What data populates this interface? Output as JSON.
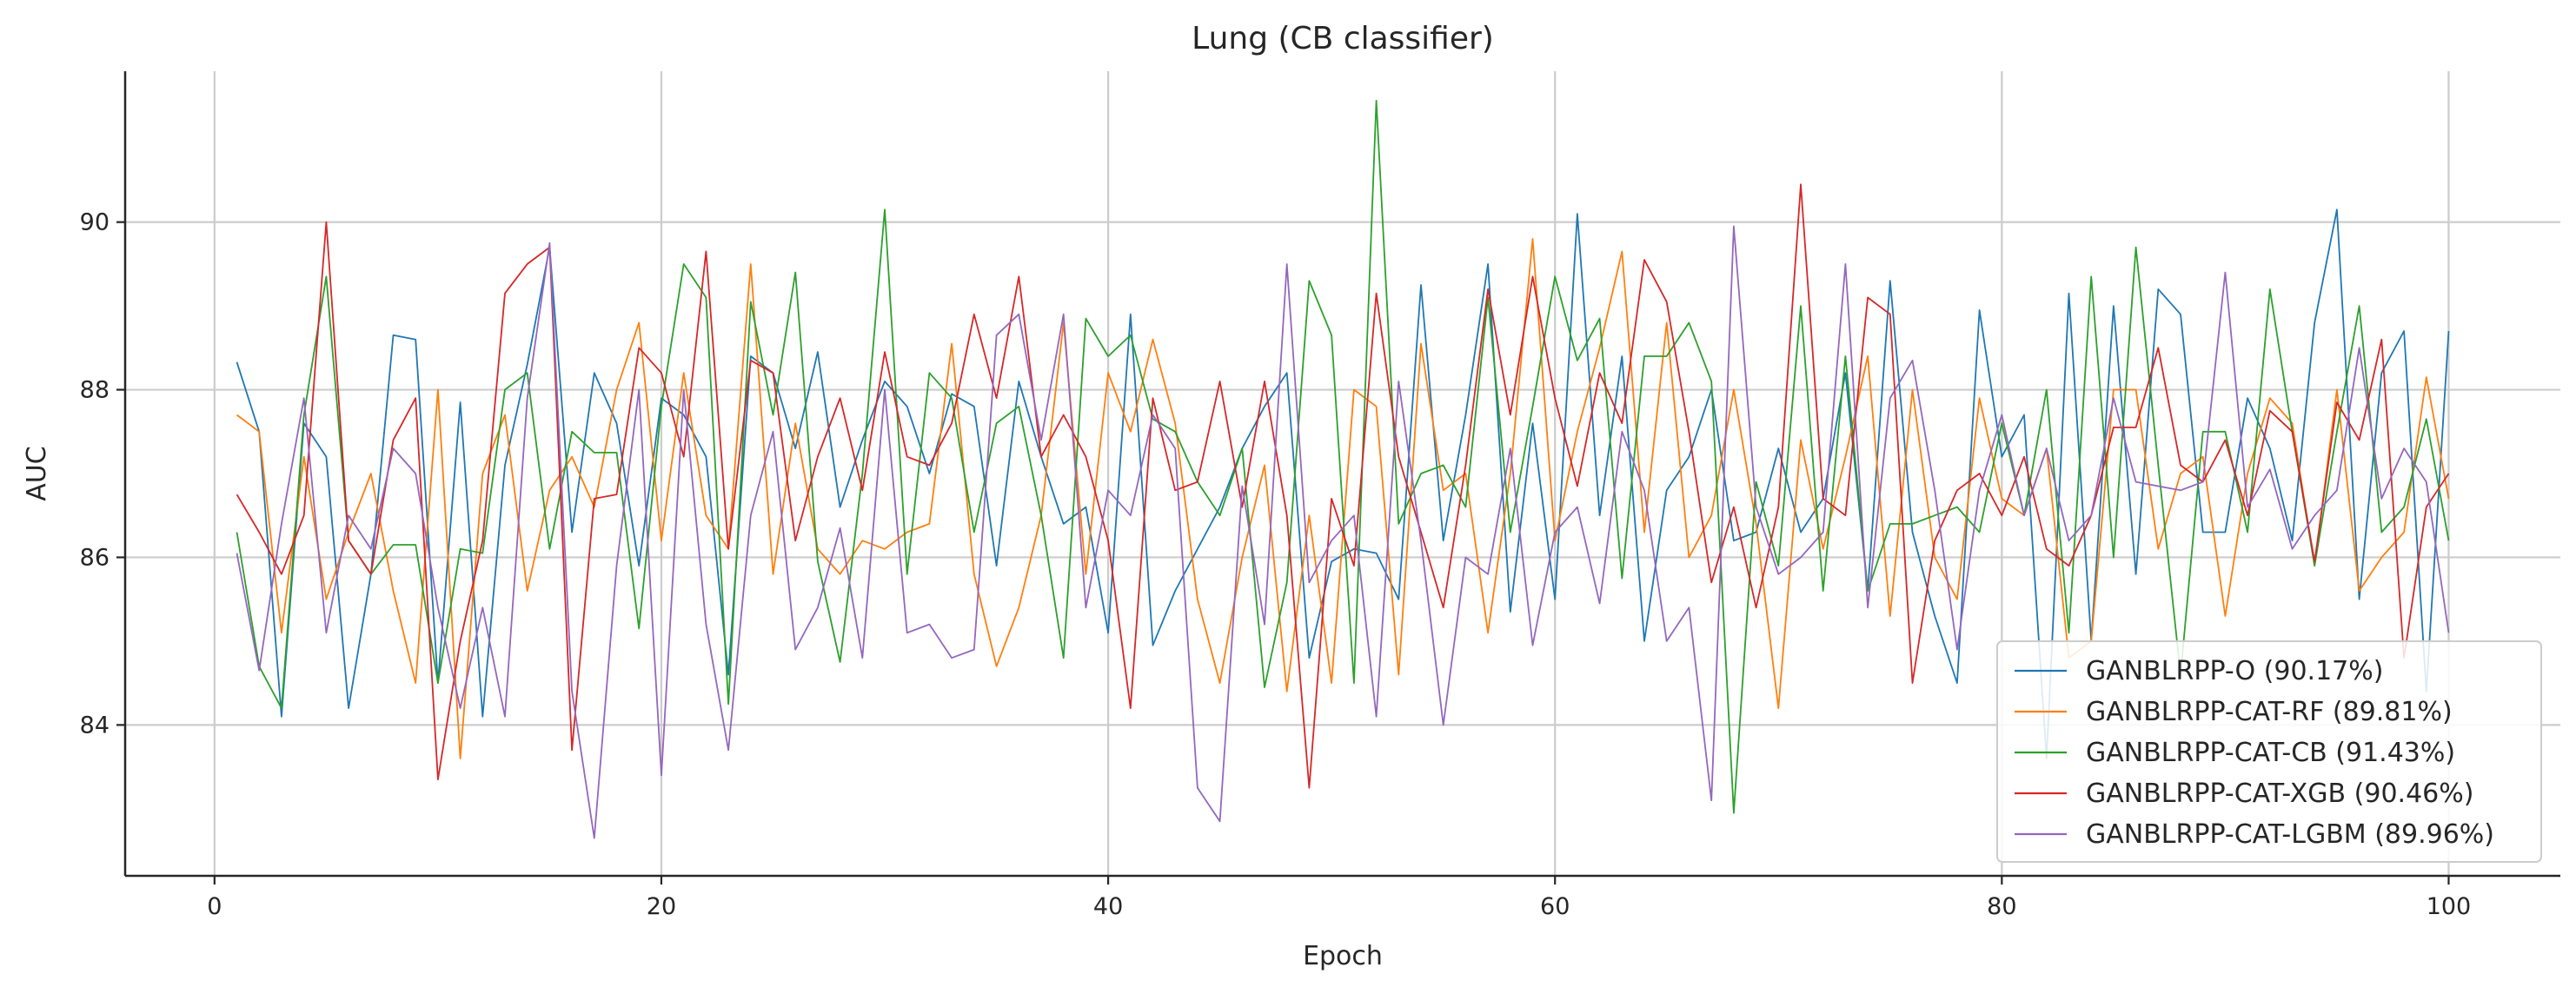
{
  "chart_data": {
    "type": "line",
    "title": "Lung (CB classifier)",
    "xlabel": "Epoch",
    "ylabel": "AUC",
    "xlim": [
      -4,
      105
    ],
    "ylim": [
      82.2,
      91.8
    ],
    "xticks": [
      0,
      20,
      40,
      60,
      80,
      100
    ],
    "yticks": [
      84,
      86,
      88,
      90
    ],
    "grid": true,
    "legend_position": "bottom-right",
    "x": [
      1,
      2,
      3,
      4,
      5,
      6,
      7,
      8,
      9,
      10,
      11,
      12,
      13,
      14,
      15,
      16,
      17,
      18,
      19,
      20,
      21,
      22,
      23,
      24,
      25,
      26,
      27,
      28,
      29,
      30,
      31,
      32,
      33,
      34,
      35,
      36,
      37,
      38,
      39,
      40,
      41,
      42,
      43,
      44,
      45,
      46,
      47,
      48,
      49,
      50,
      51,
      52,
      53,
      54,
      55,
      56,
      57,
      58,
      59,
      60,
      61,
      62,
      63,
      64,
      65,
      66,
      67,
      68,
      69,
      70,
      71,
      72,
      73,
      74,
      75,
      76,
      77,
      78,
      79,
      80,
      81,
      82,
      83,
      84,
      85,
      86,
      87,
      88,
      89,
      90,
      91,
      92,
      93,
      94,
      95,
      96,
      97,
      98,
      99,
      100
    ],
    "series": [
      {
        "name": "GANBLRPP-O (90.17%)",
        "color": "#1f77b4",
        "values": [
          88.33,
          87.5,
          84.1,
          87.6,
          87.2,
          84.2,
          85.8,
          88.65,
          88.6,
          84.5,
          87.85,
          84.1,
          87.1,
          88.3,
          89.7,
          86.3,
          88.2,
          87.6,
          85.9,
          87.9,
          87.7,
          87.2,
          84.6,
          88.4,
          88.2,
          87.3,
          88.45,
          86.6,
          87.4,
          88.1,
          87.8,
          87.0,
          87.95,
          87.8,
          85.9,
          88.1,
          87.2,
          86.4,
          86.6,
          85.1,
          88.9,
          84.95,
          85.6,
          86.1,
          86.6,
          87.3,
          87.8,
          88.2,
          84.8,
          85.95,
          86.1,
          86.05,
          85.5,
          89.25,
          86.2,
          87.7,
          89.5,
          85.35,
          87.6,
          85.5,
          90.1,
          86.5,
          88.4,
          85.0,
          86.8,
          87.2,
          88.0,
          86.2,
          86.3,
          87.3,
          86.3,
          86.7,
          88.2,
          85.6,
          89.3,
          86.3,
          85.3,
          84.5,
          88.95,
          87.2,
          87.7,
          83.6,
          89.15,
          85.0,
          89.0,
          85.8,
          89.2,
          88.9,
          86.3,
          86.3,
          87.9,
          87.3,
          86.2,
          88.8,
          90.15,
          85.5,
          88.2,
          88.7,
          84.4,
          88.7
        ]
      },
      {
        "name": "GANBLRPP-CAT-RF (89.81%)",
        "color": "#ff7f0e",
        "values": [
          87.7,
          87.5,
          85.1,
          87.2,
          85.5,
          86.3,
          87.0,
          85.6,
          84.5,
          88.0,
          83.6,
          87.0,
          87.7,
          85.6,
          86.8,
          87.2,
          86.6,
          88.0,
          88.8,
          86.2,
          88.2,
          86.5,
          86.1,
          89.5,
          85.8,
          87.6,
          86.1,
          85.8,
          86.2,
          86.1,
          86.3,
          86.4,
          88.55,
          85.8,
          84.7,
          85.4,
          86.5,
          88.8,
          85.8,
          88.2,
          87.5,
          88.6,
          87.6,
          85.5,
          84.5,
          86.0,
          87.1,
          84.4,
          86.5,
          84.5,
          88.0,
          87.8,
          84.6,
          88.55,
          86.8,
          87.0,
          85.1,
          87.0,
          89.8,
          86.2,
          87.5,
          88.5,
          89.65,
          86.3,
          88.8,
          86.0,
          86.5,
          88.0,
          86.4,
          84.2,
          87.4,
          86.1,
          87.2,
          88.4,
          85.3,
          88.0,
          86.0,
          85.5,
          87.9,
          86.7,
          86.5,
          87.3,
          84.8,
          85.0,
          88.0,
          88.0,
          86.1,
          87.0,
          87.2,
          85.3,
          87.0,
          87.9,
          87.6,
          85.9,
          88.0,
          85.6,
          86.0,
          86.3,
          88.15,
          86.7
        ]
      },
      {
        "name": "GANBLRPP-CAT-CB (91.43%)",
        "color": "#2ca02c",
        "values": [
          86.3,
          84.7,
          84.2,
          87.7,
          89.35,
          86.2,
          85.8,
          86.15,
          86.15,
          84.5,
          86.1,
          86.05,
          88.0,
          88.2,
          86.1,
          87.5,
          87.25,
          87.25,
          85.15,
          87.8,
          89.5,
          89.1,
          84.25,
          89.05,
          87.7,
          89.4,
          85.95,
          84.75,
          87.0,
          90.15,
          85.8,
          88.2,
          87.9,
          86.3,
          87.6,
          87.8,
          86.5,
          84.8,
          88.85,
          88.4,
          88.65,
          87.65,
          87.5,
          86.9,
          86.5,
          87.3,
          84.45,
          85.7,
          89.3,
          88.65,
          84.5,
          91.45,
          86.4,
          87.0,
          87.1,
          86.6,
          89.1,
          86.3,
          87.8,
          89.35,
          88.35,
          88.85,
          85.75,
          88.4,
          88.4,
          88.8,
          88.1,
          82.95,
          86.9,
          85.9,
          89.0,
          85.6,
          88.4,
          85.6,
          86.4,
          86.4,
          86.5,
          86.6,
          86.3,
          87.6,
          86.5,
          88.0,
          85.1,
          89.35,
          86.0,
          89.7,
          87.1,
          84.6,
          87.5,
          87.5,
          86.3,
          89.2,
          87.5,
          85.9,
          87.5,
          89.0,
          86.3,
          86.6,
          87.65,
          86.2
        ]
      },
      {
        "name": "GANBLRPP-CAT-XGB (90.46%)",
        "color": "#d62728",
        "values": [
          86.75,
          86.3,
          85.8,
          86.5,
          90.0,
          86.2,
          85.8,
          87.4,
          87.9,
          83.35,
          85.0,
          86.2,
          89.15,
          89.5,
          89.7,
          83.7,
          86.7,
          86.75,
          88.5,
          88.2,
          87.2,
          89.65,
          86.1,
          88.35,
          88.2,
          86.2,
          87.2,
          87.9,
          86.8,
          88.45,
          87.2,
          87.1,
          87.6,
          88.9,
          87.9,
          89.35,
          87.2,
          87.7,
          87.2,
          86.2,
          84.2,
          87.9,
          86.8,
          86.9,
          88.1,
          86.6,
          88.1,
          86.5,
          83.25,
          86.7,
          85.9,
          89.15,
          87.2,
          86.3,
          85.4,
          87.1,
          89.2,
          87.7,
          89.35,
          87.9,
          86.85,
          88.2,
          87.6,
          89.55,
          89.05,
          87.5,
          85.7,
          86.6,
          85.4,
          86.6,
          90.45,
          86.7,
          86.5,
          89.1,
          88.9,
          84.5,
          86.2,
          86.8,
          87.0,
          86.5,
          87.2,
          86.1,
          85.9,
          86.5,
          87.55,
          87.55,
          88.5,
          87.1,
          86.9,
          87.4,
          86.5,
          87.75,
          87.5,
          85.95,
          87.85,
          87.4,
          88.6,
          84.8,
          86.6,
          87.0
        ]
      },
      {
        "name": "GANBLRPP-CAT-LGBM (89.96%)",
        "color": "#9467bd",
        "values": [
          86.05,
          84.65,
          86.4,
          87.9,
          85.1,
          86.5,
          86.1,
          87.3,
          87.0,
          85.4,
          84.2,
          85.4,
          84.1,
          87.9,
          89.75,
          84.4,
          82.65,
          85.9,
          88.0,
          83.4,
          88.0,
          85.2,
          83.7,
          86.5,
          87.5,
          84.9,
          85.4,
          86.35,
          84.8,
          88.0,
          85.1,
          85.2,
          84.8,
          84.9,
          88.65,
          88.9,
          87.4,
          88.9,
          85.4,
          86.8,
          86.5,
          87.7,
          87.3,
          83.25,
          82.85,
          86.85,
          85.2,
          89.5,
          85.7,
          86.2,
          86.5,
          84.1,
          88.1,
          86.2,
          84.0,
          86.0,
          85.8,
          87.3,
          84.95,
          86.3,
          86.6,
          85.45,
          87.5,
          86.8,
          85.0,
          85.4,
          83.1,
          89.95,
          86.6,
          85.8,
          86.0,
          86.3,
          89.5,
          85.4,
          87.9,
          88.35,
          86.8,
          84.9,
          86.8,
          87.7,
          86.5,
          87.3,
          86.2,
          86.5,
          87.9,
          86.9,
          86.85,
          86.8,
          86.9,
          89.4,
          86.6,
          87.05,
          86.1,
          86.5,
          86.8,
          88.5,
          86.7,
          87.3,
          86.9,
          85.1
        ]
      }
    ]
  }
}
